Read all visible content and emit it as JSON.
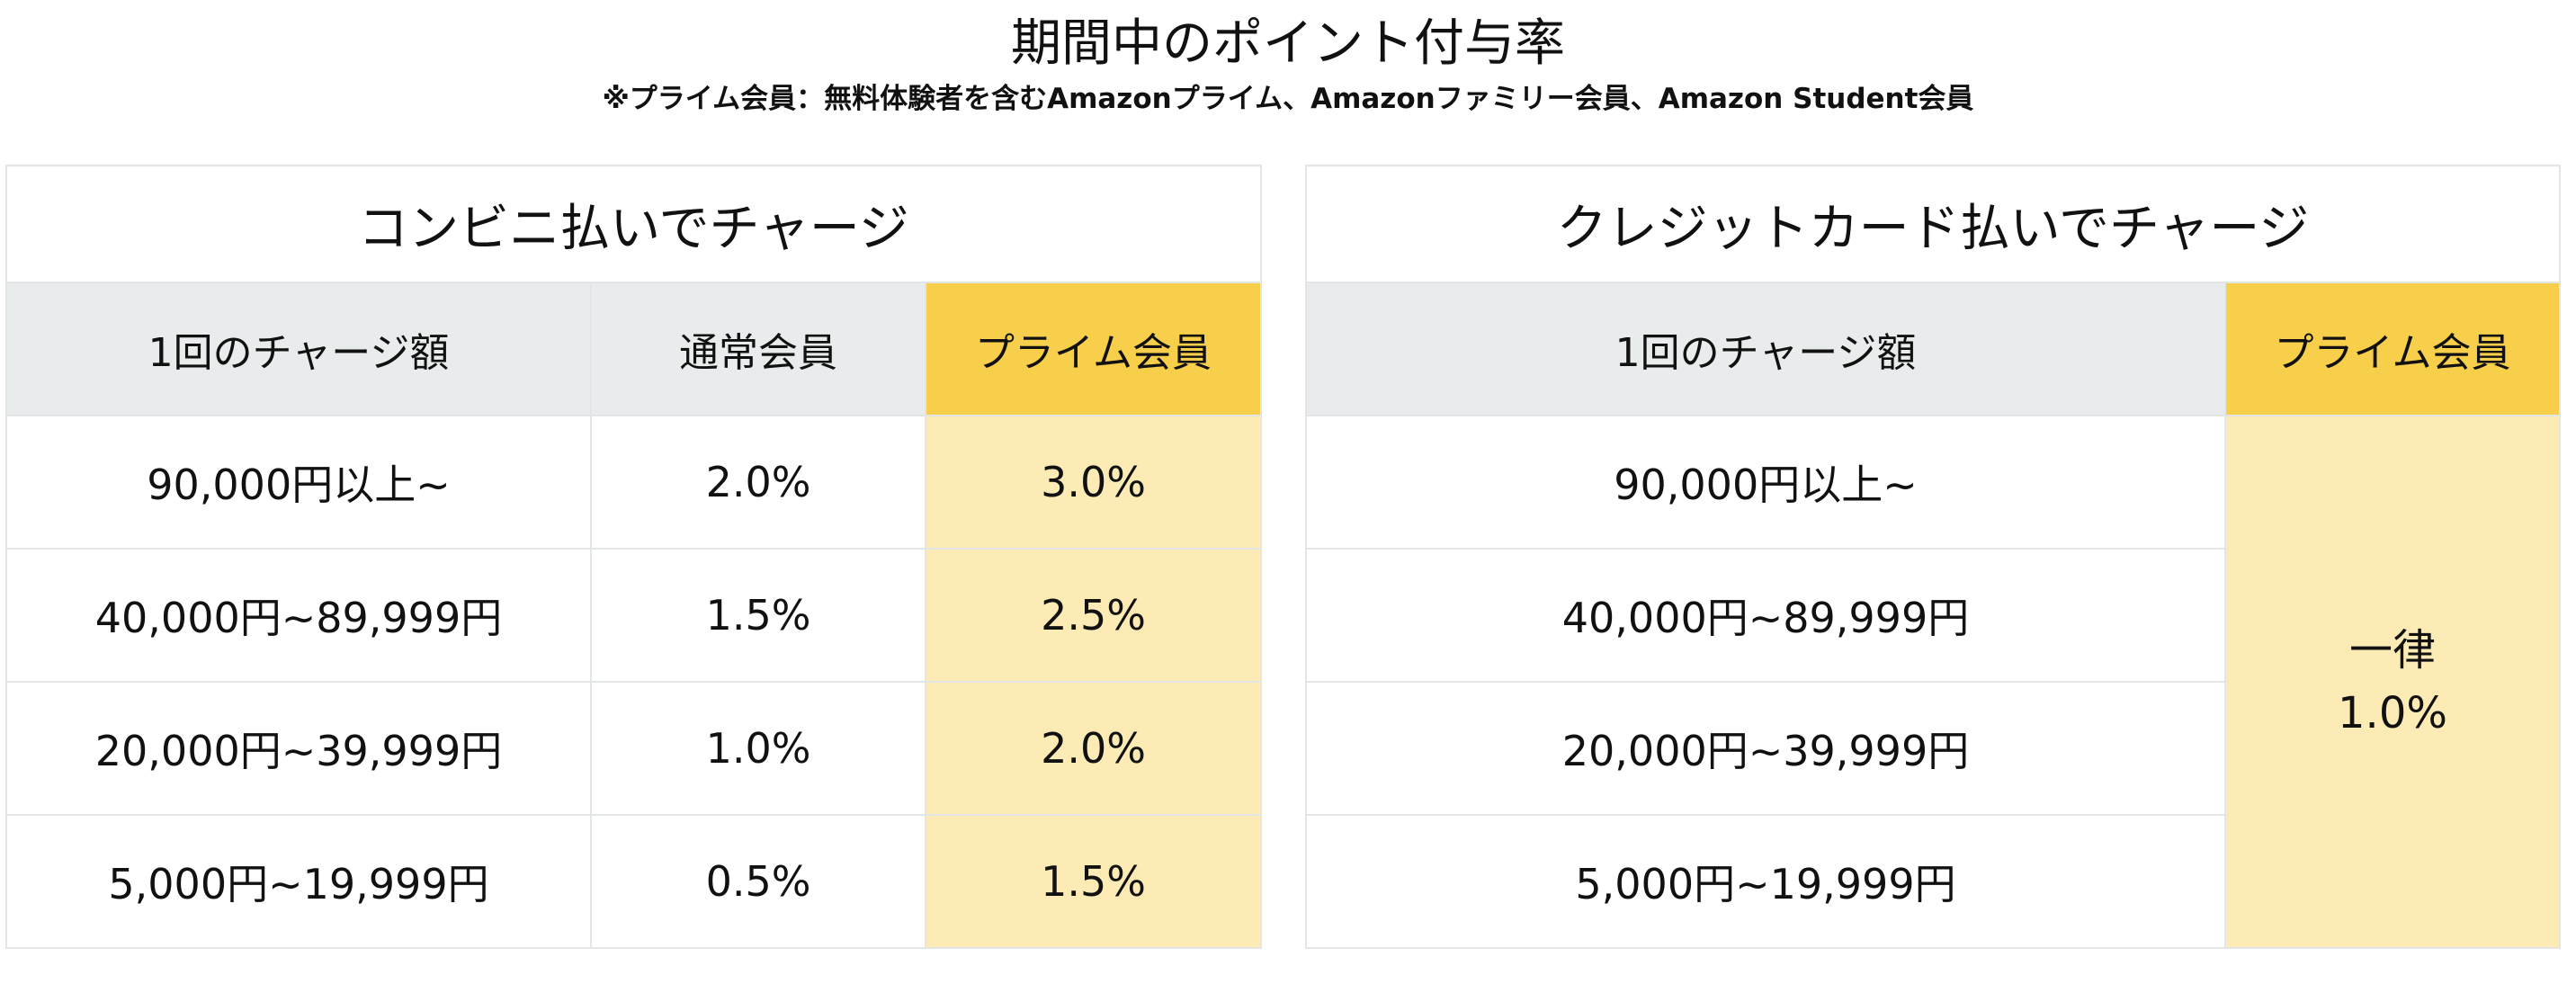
{
  "title": "期間中のポイント付与率",
  "subtitle": "※プライム会員：無料体験者を含むAmazonプライム、Amazonファミリー会員、Amazon Student会員",
  "colors": {
    "header_gray": "#e9ecec",
    "prime_header": "#f8cf4a",
    "prime_body": "#fcebb5",
    "border": "#e3e6e6"
  },
  "convenience": {
    "title": "コンビニ払いでチャージ",
    "columns": [
      "1回のチャージ額",
      "通常会員",
      "プライム会員"
    ],
    "rows": [
      {
        "amount": "90,000円以上~",
        "regular": "2.0%",
        "prime": "3.0%"
      },
      {
        "amount": "40,000円~89,999円",
        "regular": "1.5%",
        "prime": "2.5%"
      },
      {
        "amount": "20,000円~39,999円",
        "regular": "1.0%",
        "prime": "2.0%"
      },
      {
        "amount": "5,000円~19,999円",
        "regular": "0.5%",
        "prime": "1.5%"
      }
    ]
  },
  "credit": {
    "title": "クレジットカード払いでチャージ",
    "columns": [
      "1回のチャージ額",
      "プライム会員"
    ],
    "rows": [
      {
        "amount": "90,000円以上~"
      },
      {
        "amount": "40,000円~89,999円"
      },
      {
        "amount": "20,000円~39,999円"
      },
      {
        "amount": "5,000円~19,999円"
      }
    ],
    "prime_flat_line1": "一律",
    "prime_flat_line2": "1.0%"
  }
}
